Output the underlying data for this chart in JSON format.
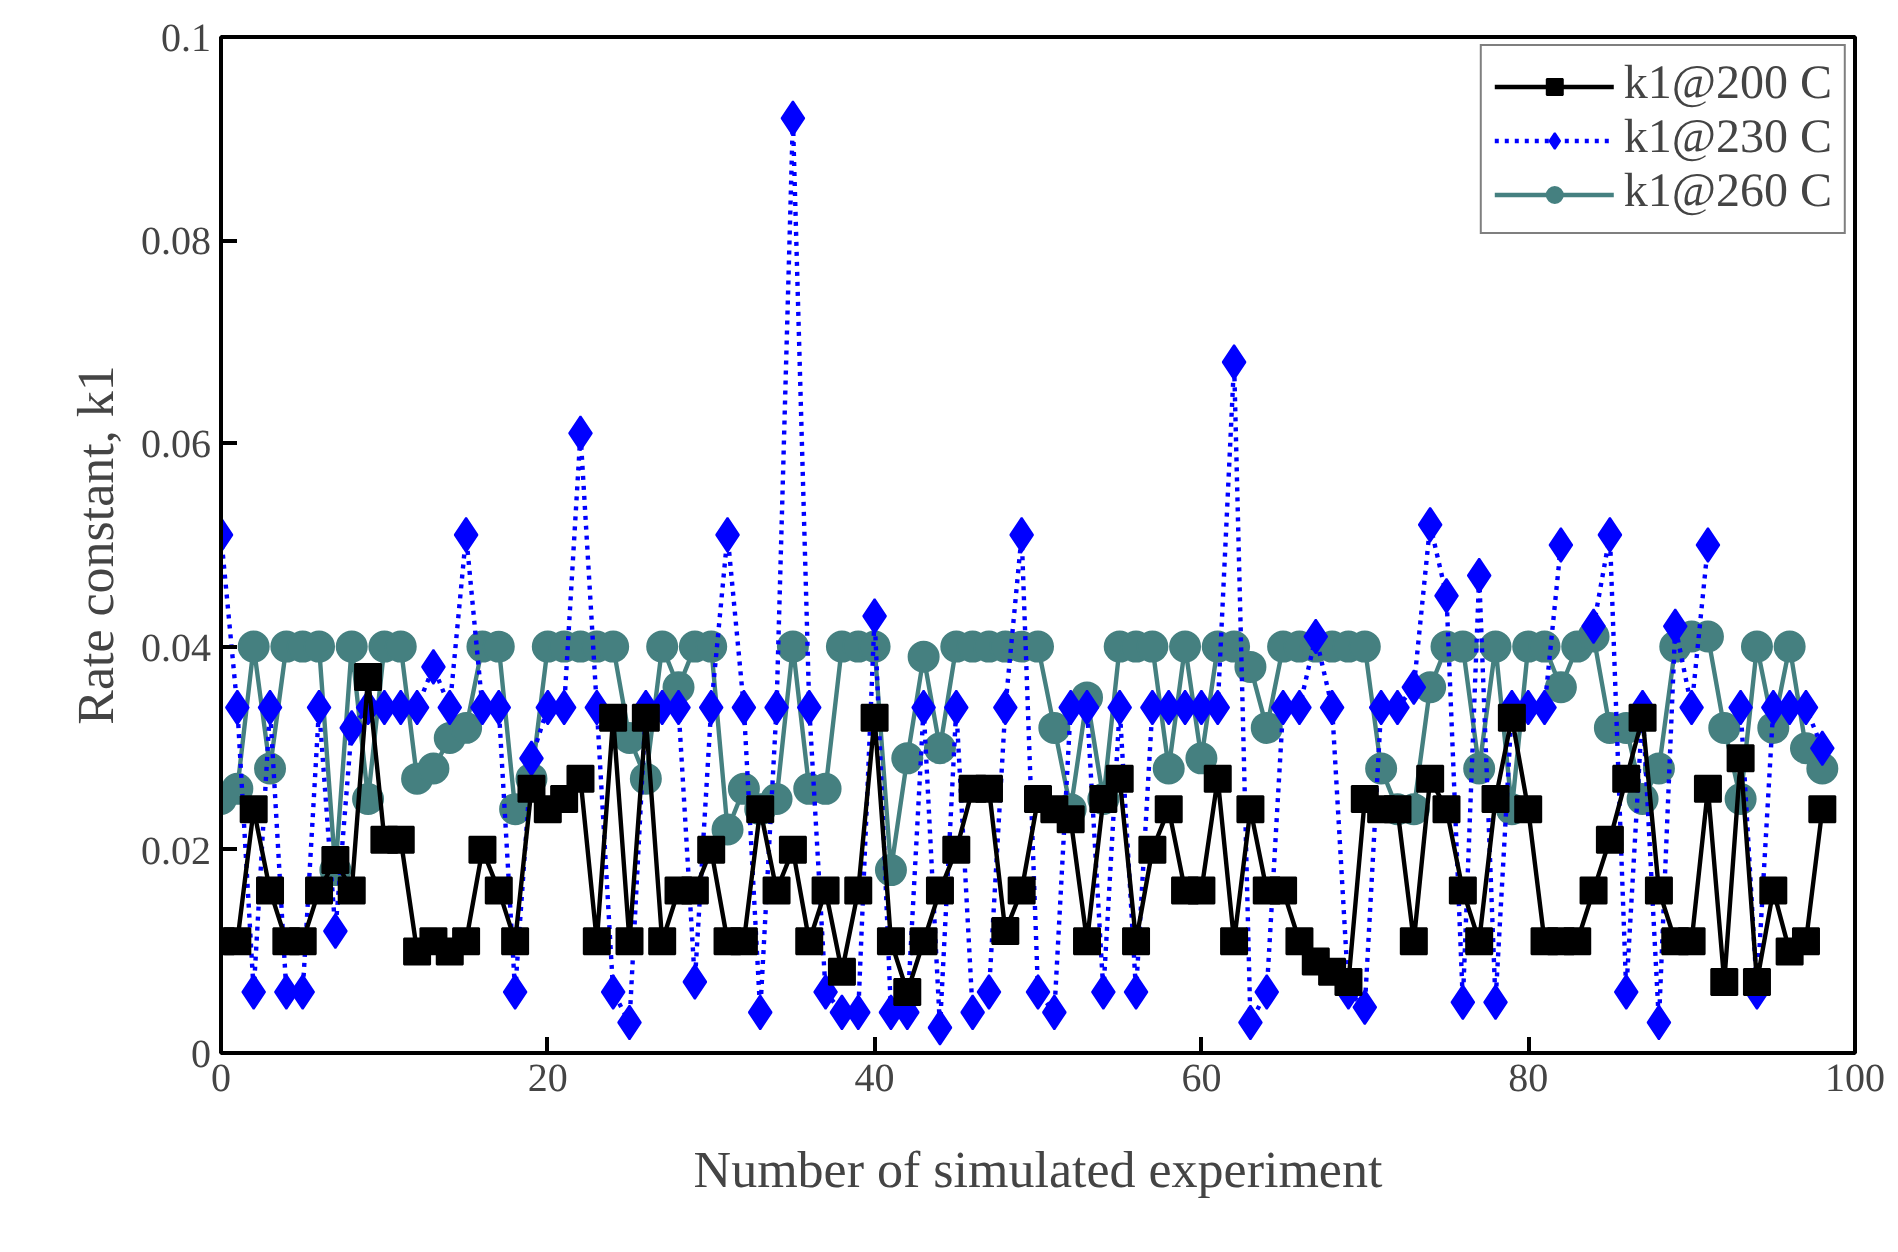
{
  "chart_data": {
    "type": "line",
    "xlabel": "Number of simulated experiment",
    "ylabel": "Rate constant, k1",
    "x": [
      0,
      1,
      2,
      3,
      4,
      5,
      6,
      7,
      8,
      9,
      10,
      11,
      12,
      13,
      14,
      15,
      16,
      17,
      18,
      19,
      20,
      21,
      22,
      23,
      24,
      25,
      26,
      27,
      28,
      29,
      30,
      31,
      32,
      33,
      34,
      35,
      36,
      37,
      38,
      39,
      40,
      41,
      42,
      43,
      44,
      45,
      46,
      47,
      48,
      49,
      50,
      51,
      52,
      53,
      54,
      55,
      56,
      57,
      58,
      59,
      60,
      61,
      62,
      63,
      64,
      65,
      66,
      67,
      68,
      69,
      70,
      71,
      72,
      73,
      74,
      75,
      76,
      77,
      78,
      79,
      80,
      81,
      82,
      83,
      84,
      85,
      86,
      87,
      88,
      89,
      90,
      91,
      92,
      93,
      94,
      95,
      96,
      97,
      98
    ],
    "series": [
      {
        "name": "k1@200 C",
        "color": "#000000",
        "marker": "square",
        "line_style": "solid",
        "values": [
          0.011,
          0.011,
          0.024,
          0.016,
          0.011,
          0.011,
          0.016,
          0.019,
          0.016,
          0.037,
          0.021,
          0.021,
          0.01,
          0.011,
          0.01,
          0.011,
          0.02,
          0.016,
          0.011,
          0.026,
          0.024,
          0.025,
          0.027,
          0.011,
          0.033,
          0.011,
          0.033,
          0.011,
          0.016,
          0.016,
          0.02,
          0.011,
          0.011,
          0.024,
          0.016,
          0.02,
          0.011,
          0.016,
          0.008,
          0.016,
          0.033,
          0.011,
          0.006,
          0.011,
          0.016,
          0.02,
          0.026,
          0.026,
          0.012,
          0.016,
          0.025,
          0.024,
          0.023,
          0.011,
          0.025,
          0.027,
          0.011,
          0.02,
          0.024,
          0.016,
          0.016,
          0.027,
          0.011,
          0.024,
          0.016,
          0.016,
          0.011,
          0.009,
          0.008,
          0.007,
          0.025,
          0.024,
          0.024,
          0.011,
          0.027,
          0.024,
          0.016,
          0.011,
          0.025,
          0.033,
          0.024,
          0.011,
          0.011,
          0.011,
          0.016,
          0.021,
          0.027,
          0.033,
          0.016,
          0.011,
          0.011,
          0.026,
          0.007,
          0.029,
          0.007,
          0.016,
          0.01,
          0.011,
          0.024
        ]
      },
      {
        "name": "k1@230 C",
        "color": "#0000ff",
        "marker": "diamond",
        "line_style": "dotted",
        "values": [
          0.051,
          0.034,
          0.006,
          0.034,
          0.006,
          0.006,
          0.034,
          0.012,
          0.032,
          0.034,
          0.034,
          0.034,
          0.034,
          0.038,
          0.034,
          0.051,
          0.034,
          0.034,
          0.006,
          0.029,
          0.034,
          0.034,
          0.061,
          0.034,
          0.006,
          0.003,
          0.034,
          0.034,
          0.034,
          0.007,
          0.034,
          0.051,
          0.034,
          0.004,
          0.034,
          0.092,
          0.034,
          0.006,
          0.004,
          0.004,
          0.043,
          0.004,
          0.004,
          0.034,
          0.0025,
          0.034,
          0.004,
          0.006,
          0.034,
          0.051,
          0.006,
          0.004,
          0.034,
          0.034,
          0.006,
          0.034,
          0.006,
          0.034,
          0.034,
          0.034,
          0.034,
          0.034,
          0.068,
          0.003,
          0.006,
          0.034,
          0.034,
          0.041,
          0.034,
          0.006,
          0.0045,
          0.034,
          0.034,
          0.036,
          0.052,
          0.045,
          0.005,
          0.047,
          0.005,
          0.034,
          0.034,
          0.034,
          0.05,
          null,
          0.042,
          0.051,
          0.006,
          0.034,
          0.003,
          0.042,
          0.034,
          0.05,
          null,
          0.034,
          0.006,
          0.034,
          0.034,
          0.034,
          0.03
        ]
      },
      {
        "name": "k1@260 C",
        "color": "#458080",
        "marker": "circle",
        "line_style": "solid",
        "values": [
          0.025,
          0.026,
          0.04,
          0.028,
          0.04,
          0.04,
          0.04,
          0.018,
          0.04,
          0.025,
          0.04,
          0.04,
          0.027,
          0.028,
          0.031,
          0.032,
          0.04,
          0.04,
          0.024,
          0.027,
          0.04,
          0.04,
          0.04,
          0.04,
          0.04,
          0.031,
          0.027,
          0.04,
          0.036,
          0.04,
          0.04,
          0.022,
          0.026,
          0.024,
          0.025,
          0.04,
          0.026,
          0.026,
          0.04,
          0.04,
          0.04,
          0.018,
          0.029,
          0.039,
          0.03,
          0.04,
          0.04,
          0.04,
          0.04,
          0.04,
          0.04,
          0.032,
          0.024,
          0.035,
          0.025,
          0.04,
          0.04,
          0.04,
          0.028,
          0.04,
          0.029,
          0.04,
          0.04,
          0.038,
          0.032,
          0.04,
          0.04,
          0.04,
          0.04,
          0.04,
          0.04,
          0.028,
          0.024,
          0.024,
          0.036,
          0.04,
          0.04,
          0.028,
          0.04,
          0.024,
          0.04,
          0.04,
          0.036,
          0.04,
          0.041,
          0.032,
          0.032,
          0.025,
          0.028,
          0.04,
          0.041,
          0.041,
          0.032,
          0.025,
          0.04,
          0.032,
          0.04,
          0.03,
          0.028
        ]
      }
    ],
    "xlim": [
      0,
      100
    ],
    "xticks": [
      0,
      20,
      40,
      60,
      80,
      100
    ],
    "ylim": [
      0,
      0.1
    ],
    "yticks": [
      0,
      0.02,
      0.04,
      0.06,
      0.08,
      0.1
    ],
    "grid": false,
    "legend": "top right"
  }
}
